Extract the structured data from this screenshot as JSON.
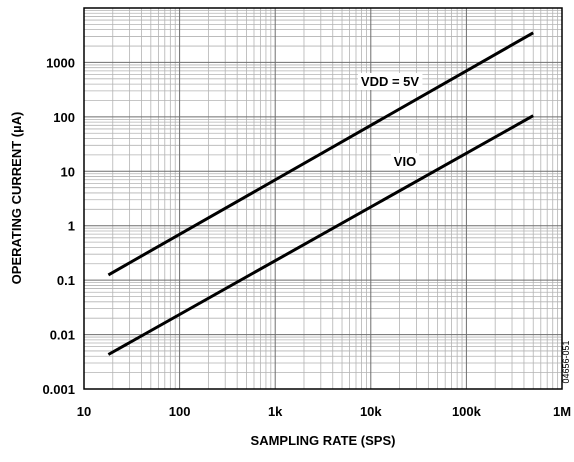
{
  "chart_data": {
    "type": "line",
    "x_scale": "log",
    "y_scale": "log",
    "xlabel": "SAMPLING RATE (SPS)",
    "ylabel": "OPERATING CURRENT (µA)",
    "xlim": [
      10,
      1000000
    ],
    "ylim": [
      0.001,
      10000
    ],
    "x_ticks": [
      10,
      100,
      1000,
      10000,
      100000,
      1000000
    ],
    "x_tick_labels": [
      "10",
      "100",
      "1k",
      "10k",
      "100k",
      "1M"
    ],
    "y_ticks": [
      0.001,
      0.01,
      0.1,
      1,
      10,
      100,
      1000
    ],
    "y_tick_labels": [
      "0.001",
      "0.01",
      "0.1",
      "1",
      "10",
      "100",
      "1000"
    ],
    "grid": true,
    "legend": "none",
    "series": [
      {
        "name": "VDD = 5V",
        "x": [
          18,
          500000
        ],
        "y": [
          0.125,
          3500
        ]
      },
      {
        "name": "VIO",
        "x": [
          18,
          500000
        ],
        "y": [
          0.0043,
          105
        ]
      }
    ],
    "figure_code": "04656-051"
  }
}
